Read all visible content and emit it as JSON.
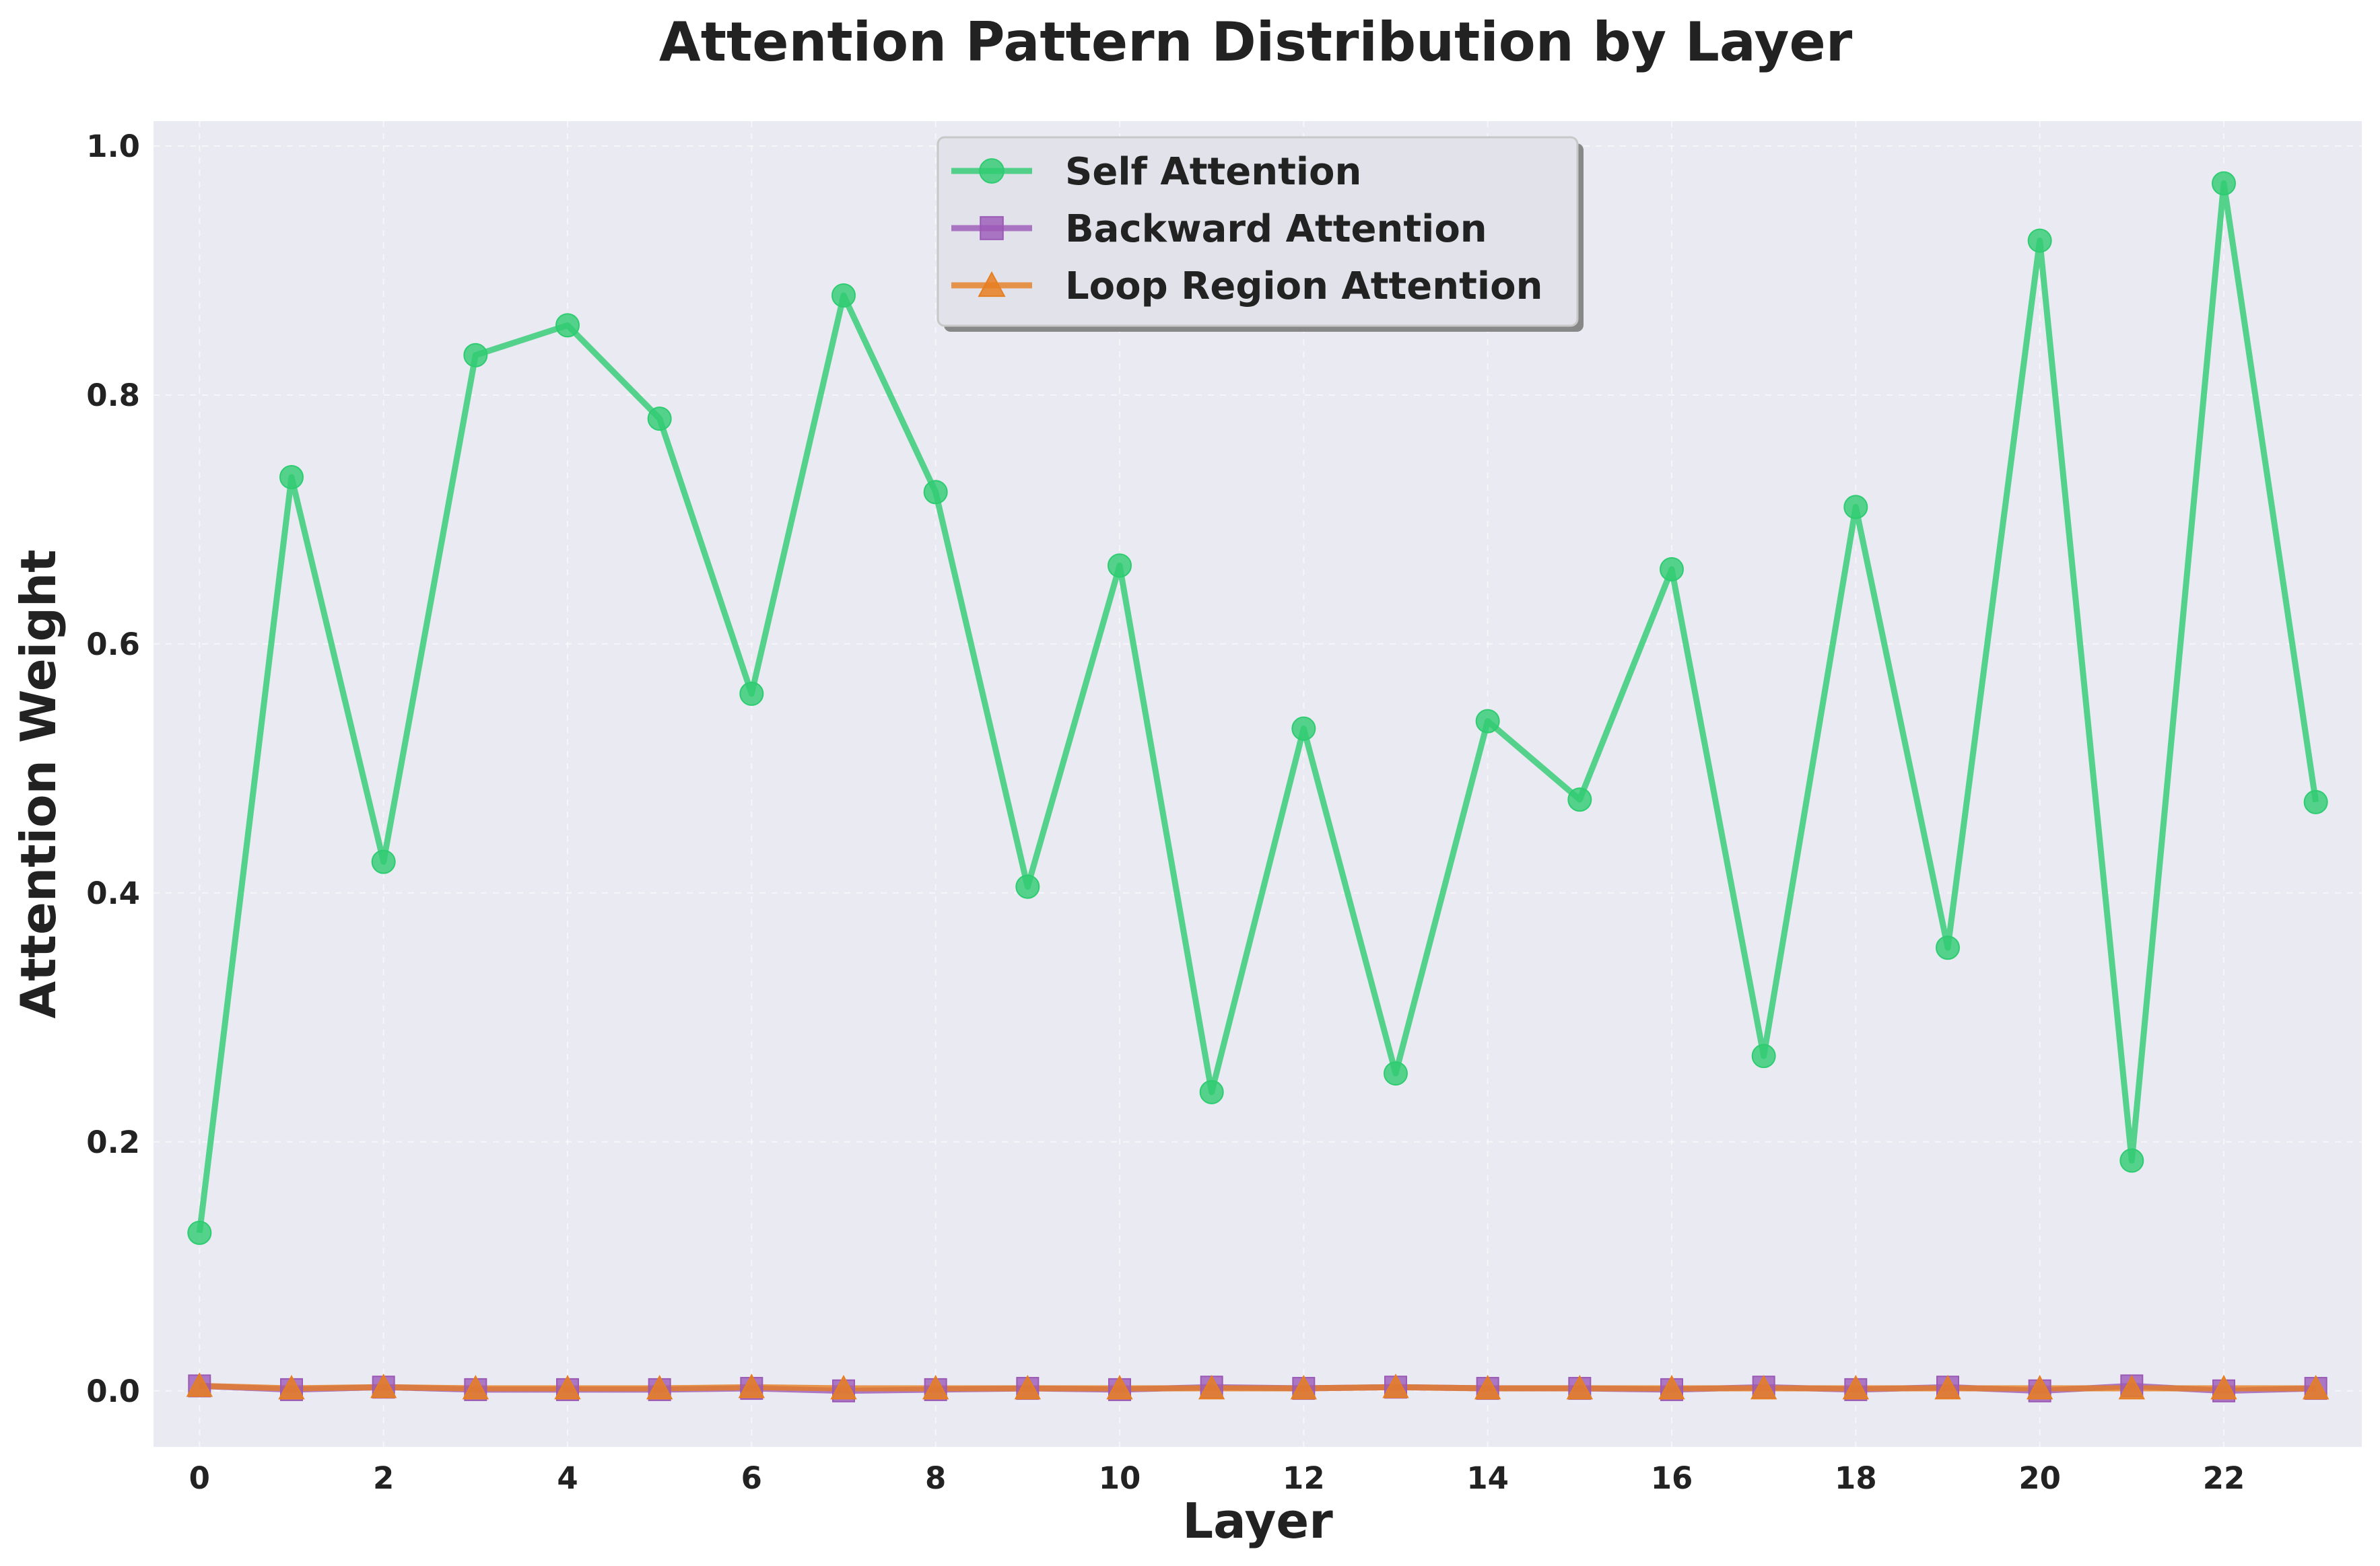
{
  "chart_data": {
    "type": "line",
    "title": "Attention Pattern Distribution by Layer",
    "xlabel": "Layer",
    "ylabel": "Attention Weight",
    "x": [
      0,
      1,
      2,
      3,
      4,
      5,
      6,
      7,
      8,
      9,
      10,
      11,
      12,
      13,
      14,
      15,
      16,
      17,
      18,
      19,
      20,
      21,
      22,
      23
    ],
    "xticks": [
      "0",
      "2",
      "4",
      "6",
      "8",
      "10",
      "12",
      "14",
      "16",
      "18",
      "20",
      "22"
    ],
    "yticks": [
      "0.0",
      "0.2",
      "0.4",
      "0.6",
      "0.8",
      "1.0"
    ],
    "xlim": [
      -0.5,
      23.5
    ],
    "ylim": [
      -0.045,
      1.02
    ],
    "grid": true,
    "legend_position": "top-center",
    "series": [
      {
        "name": "Self Attention",
        "color": "#2ecc71",
        "marker": "circle",
        "values": [
          0.127,
          0.734,
          0.425,
          0.832,
          0.856,
          0.781,
          0.56,
          0.88,
          0.722,
          0.405,
          0.663,
          0.24,
          0.532,
          0.255,
          0.538,
          0.475,
          0.66,
          0.269,
          0.71,
          0.356,
          0.924,
          0.185,
          0.97,
          0.473
        ]
      },
      {
        "name": "Backward Attention",
        "color": "#9b59b6",
        "marker": "square",
        "values": [
          0.004,
          0.001,
          0.003,
          0.001,
          0.001,
          0.001,
          0.002,
          0.0,
          0.001,
          0.002,
          0.001,
          0.003,
          0.002,
          0.003,
          0.002,
          0.002,
          0.001,
          0.003,
          0.001,
          0.003,
          0.0,
          0.004,
          0.0,
          0.002
        ]
      },
      {
        "name": "Loop Region Attention",
        "color": "#e67e22",
        "marker": "triangle",
        "values": [
          0.004,
          0.002,
          0.003,
          0.002,
          0.002,
          0.002,
          0.003,
          0.002,
          0.002,
          0.002,
          0.002,
          0.002,
          0.002,
          0.003,
          0.002,
          0.002,
          0.002,
          0.002,
          0.002,
          0.002,
          0.002,
          0.002,
          0.002,
          0.002
        ]
      }
    ]
  },
  "colors": {
    "plot_background": "#eaeaf2",
    "legend_background": "#e2e2ea",
    "text": "#222222"
  }
}
